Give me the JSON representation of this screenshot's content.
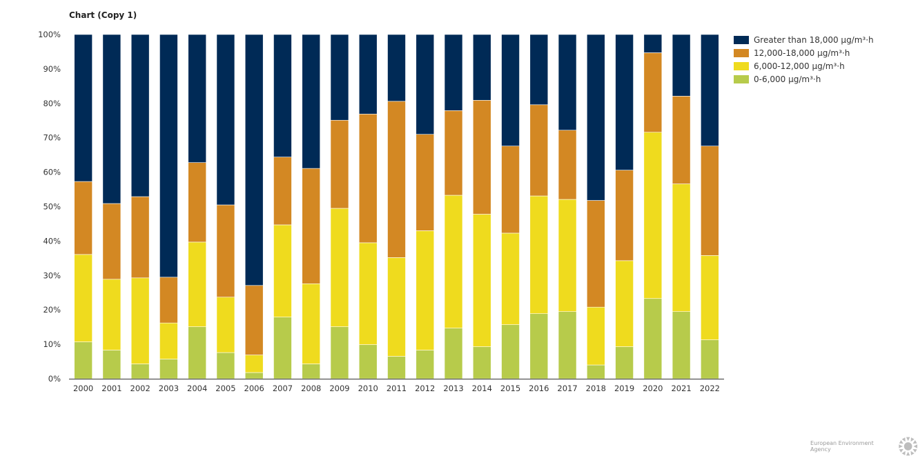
{
  "title": "Chart (Copy 1)",
  "footer": {
    "agency": "European Environment Agency",
    "logo_icon": "eea-sun-logo-icon"
  },
  "colors": {
    "s0": "#b7cb4b",
    "s1": "#efdb1e",
    "s2": "#d38823",
    "s3": "#002a56",
    "axis": "#333333"
  },
  "chart_data": {
    "type": "bar",
    "stacked": true,
    "title": "Chart (Copy 1)",
    "xlabel": "",
    "ylabel": "",
    "ylim": [
      0,
      100
    ],
    "y_ticks": [
      "0%",
      "10%",
      "20%",
      "30%",
      "40%",
      "50%",
      "60%",
      "70%",
      "80%",
      "90%",
      "100%"
    ],
    "legend_position": "right-top",
    "grid": false,
    "categories": [
      "2000",
      "2001",
      "2002",
      "2003",
      "2004",
      "2005",
      "2006",
      "2007",
      "2008",
      "2009",
      "2010",
      "2011",
      "2012",
      "2013",
      "2014",
      "2015",
      "2016",
      "2017",
      "2018",
      "2019",
      "2020",
      "2021",
      "2022"
    ],
    "series": [
      {
        "name": "0-6,000 µg/m³·h",
        "color": "#b7cb4b",
        "values": [
          10.7,
          8.3,
          4.3,
          5.7,
          15.1,
          7.6,
          1.8,
          17.9,
          4.3,
          15.1,
          9.9,
          6.5,
          8.3,
          14.7,
          9.3,
          15.7,
          18.9,
          19.5,
          4.0,
          9.3,
          23.3,
          19.5,
          11.3
        ]
      },
      {
        "name": "6,000-12,000 µg/m³·h",
        "color": "#efdb1e",
        "values": [
          25.4,
          20.6,
          25.0,
          10.5,
          24.6,
          16.1,
          5.1,
          26.8,
          23.3,
          34.4,
          29.6,
          28.7,
          34.7,
          38.6,
          38.5,
          26.6,
          34.2,
          32.6,
          16.8,
          25.0,
          48.3,
          37.1,
          24.5
        ]
      },
      {
        "name": "12,000-18,000 µg/m³·h",
        "color": "#d38823",
        "values": [
          21.2,
          22.0,
          23.6,
          13.3,
          23.1,
          26.8,
          20.2,
          19.7,
          33.5,
          25.6,
          37.4,
          45.4,
          28.0,
          24.6,
          33.1,
          25.3,
          26.5,
          20.1,
          31.0,
          26.3,
          23.1,
          25.5,
          31.8
        ]
      },
      {
        "name": "Greater than 18,000 µg/m³·h",
        "color": "#002a56",
        "values": [
          42.7,
          49.1,
          47.1,
          70.5,
          37.2,
          49.5,
          72.9,
          35.6,
          38.9,
          24.9,
          23.1,
          19.4,
          29.0,
          22.1,
          19.1,
          32.4,
          20.4,
          27.8,
          48.2,
          39.4,
          5.3,
          17.9,
          32.4
        ]
      }
    ]
  }
}
